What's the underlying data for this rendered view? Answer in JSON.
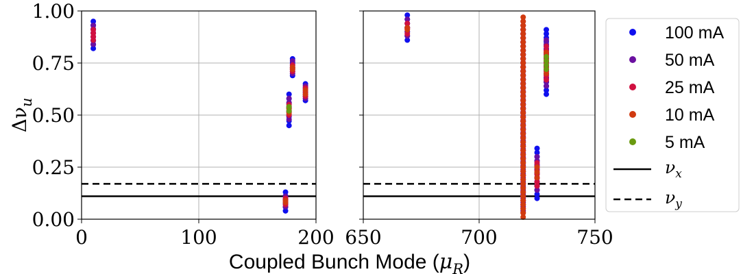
{
  "chart_data": {
    "type": "scatter",
    "ylabel": "Δν",
    "ylabel_sub": "u",
    "xlabel": "Coupled Bunch Mode (",
    "xlabel_math": "μ",
    "xlabel_sub": "R",
    "xlabel_close": ")",
    "grid": true,
    "legend_position": "right",
    "yticks": [
      "0.00",
      "0.25",
      "0.50",
      "0.75",
      "1.00"
    ],
    "ytick_values": [
      0,
      0.25,
      0.5,
      0.75,
      1.0
    ],
    "ylim": [
      0,
      1
    ],
    "panels": [
      {
        "xlim": [
          0,
          200
        ],
        "xticks": [
          "0",
          "100",
          "200"
        ],
        "xtick_values": [
          0,
          100,
          200
        ]
      },
      {
        "xlim": [
          650,
          750
        ],
        "xticks": [
          "650",
          "700",
          "750"
        ],
        "xtick_values": [
          650,
          700,
          750
        ]
      }
    ],
    "lines": [
      {
        "name": "ν",
        "sub": "x",
        "y": 0.11,
        "style": "solid",
        "color": "#000000"
      },
      {
        "name": "ν",
        "sub": "y",
        "y": 0.17,
        "style": "dashed",
        "color": "#000000"
      }
    ],
    "series": [
      {
        "name": "100 mA",
        "color": "#1010ee",
        "points": [
          [
            10,
            0.82
          ],
          [
            10,
            0.95
          ],
          [
            174,
            0.04
          ],
          [
            174,
            0.13
          ],
          [
            177,
            0.45
          ],
          [
            177,
            0.6
          ],
          [
            180,
            0.69
          ],
          [
            180,
            0.77
          ],
          [
            191,
            0.57
          ],
          [
            191,
            0.65
          ],
          [
            669,
            0.86
          ],
          [
            669,
            0.98
          ],
          [
            719,
            0.07
          ],
          [
            719,
            0.91
          ],
          [
            725,
            0.1
          ],
          [
            725,
            0.34
          ],
          [
            729,
            0.6
          ],
          [
            729,
            0.91
          ]
        ]
      },
      {
        "name": "50 mA",
        "color": "#6b10a0",
        "points": [
          [
            10,
            0.84
          ],
          [
            10,
            0.93
          ],
          [
            174,
            0.06
          ],
          [
            174,
            0.11
          ],
          [
            177,
            0.48
          ],
          [
            177,
            0.58
          ],
          [
            180,
            0.7
          ],
          [
            180,
            0.76
          ],
          [
            191,
            0.58
          ],
          [
            191,
            0.64
          ],
          [
            669,
            0.88
          ],
          [
            669,
            0.96
          ],
          [
            719,
            0.04
          ],
          [
            719,
            0.93
          ],
          [
            725,
            0.14
          ],
          [
            725,
            0.3
          ],
          [
            729,
            0.64
          ],
          [
            729,
            0.86
          ]
        ]
      },
      {
        "name": "25 mA",
        "color": "#d01040",
        "points": [
          [
            10,
            0.86
          ],
          [
            10,
            0.91
          ],
          [
            174,
            0.07
          ],
          [
            174,
            0.1
          ],
          [
            177,
            0.5
          ],
          [
            177,
            0.55
          ],
          [
            180,
            0.71
          ],
          [
            180,
            0.74
          ],
          [
            191,
            0.59
          ],
          [
            191,
            0.63
          ],
          [
            669,
            0.89
          ],
          [
            669,
            0.94
          ],
          [
            719,
            0.03
          ],
          [
            719,
            0.95
          ],
          [
            725,
            0.16
          ],
          [
            725,
            0.27
          ],
          [
            729,
            0.67
          ],
          [
            729,
            0.83
          ]
        ]
      },
      {
        "name": "10 mA",
        "color": "#d03a10",
        "points": [
          [
            174,
            0.08
          ],
          [
            174,
            0.09
          ],
          [
            177,
            0.51
          ],
          [
            177,
            0.53
          ],
          [
            180,
            0.72
          ],
          [
            180,
            0.73
          ],
          [
            191,
            0.6
          ],
          [
            191,
            0.62
          ],
          [
            669,
            0.91
          ],
          [
            669,
            0.92
          ],
          [
            719,
            0.01
          ],
          [
            719,
            0.97
          ],
          [
            725,
            0.2
          ],
          [
            725,
            0.25
          ],
          [
            729,
            0.7
          ],
          [
            729,
            0.8
          ]
        ]
      },
      {
        "name": "5 mA",
        "color": "#6a9a10",
        "points": [
          [
            177,
            0.52
          ],
          [
            177,
            0.54
          ],
          [
            729,
            0.72
          ],
          [
            729,
            0.78
          ]
        ]
      }
    ]
  }
}
